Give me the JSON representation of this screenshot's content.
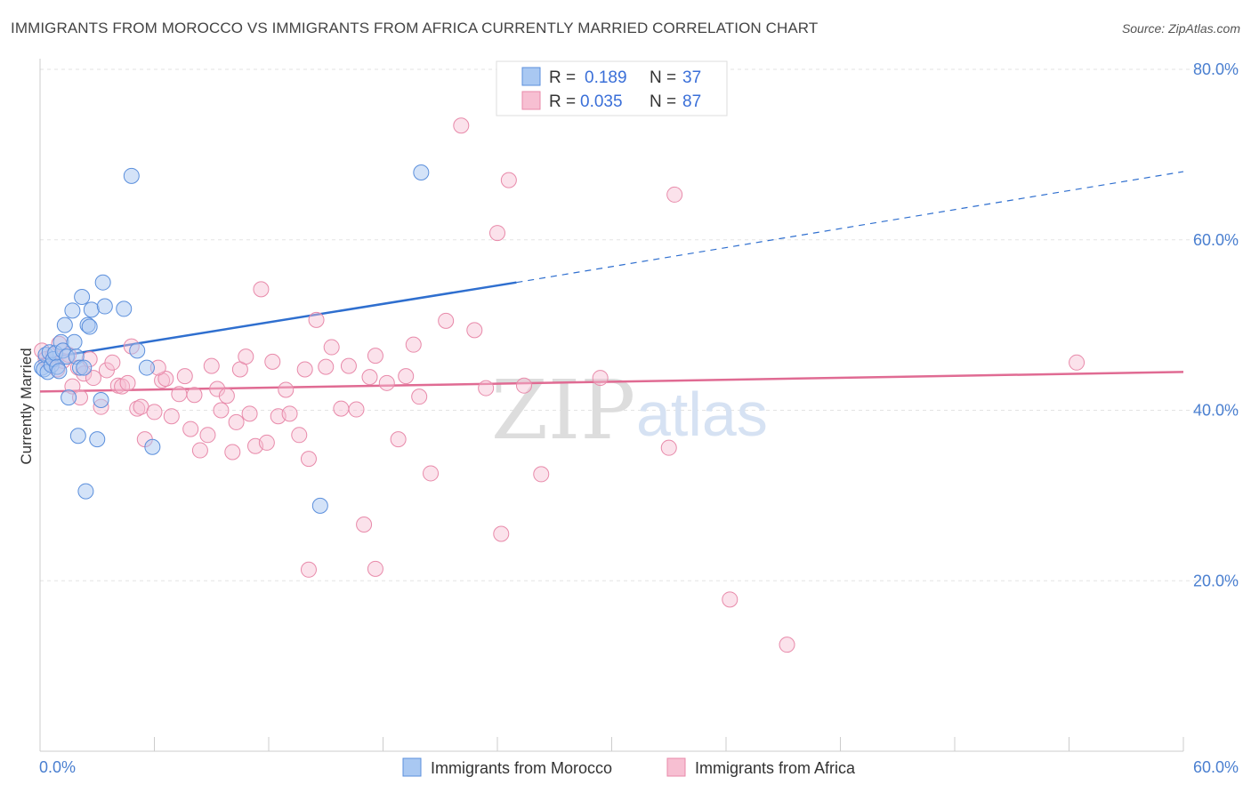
{
  "header": {
    "title": "IMMIGRANTS FROM MOROCCO VS IMMIGRANTS FROM AFRICA CURRENTLY MARRIED CORRELATION CHART",
    "source": "Source: ZipAtlas.com"
  },
  "watermark": {
    "zip": "ZIP",
    "atlas": "atlas"
  },
  "colors": {
    "morocco_fill": "#a9c8f2",
    "morocco_stroke": "#5b8fdc",
    "morocco_line": "#2f6fcf",
    "africa_fill": "#f7bfd2",
    "africa_stroke": "#e88aaa",
    "africa_line": "#e06b93",
    "tick_text": "#4a7fd0"
  },
  "legend": {
    "rows": [
      {
        "r_label": "R =",
        "r_value": "0.189",
        "n_label": "N =",
        "n_value": "37"
      },
      {
        "r_label": "R =",
        "r_value": "0.035",
        "n_label": "N =",
        "n_value": "87"
      }
    ]
  },
  "chart_data": {
    "type": "scatter",
    "title": "IMMIGRANTS FROM MOROCCO VS IMMIGRANTS FROM AFRICA CURRENTLY MARRIED CORRELATION CHART",
    "xlabel": "",
    "ylabel": "Currently Married",
    "xlim": [
      0,
      60
    ],
    "ylim": [
      0,
      80
    ],
    "x_tick_labels": [
      "0.0%",
      "60.0%"
    ],
    "y_ticks": [
      20,
      40,
      60,
      80
    ],
    "y_tick_labels": [
      "20.0%",
      "40.0%",
      "60.0%",
      "80.0%"
    ],
    "grid": true,
    "legend_position": "top-center",
    "series": [
      {
        "name": "Immigrants from Morocco",
        "r": 0.189,
        "n": 37,
        "trend": {
          "x_start": 0,
          "y_start": 46.0,
          "x_solid_end": 25,
          "y_solid_end": 55.0,
          "x_dash_end": 60,
          "y_dash_end": 68.0
        },
        "points": [
          [
            0.1,
            45.0
          ],
          [
            0.2,
            44.8
          ],
          [
            0.3,
            46.5
          ],
          [
            0.4,
            44.5
          ],
          [
            0.5,
            46.8
          ],
          [
            0.6,
            45.3
          ],
          [
            0.7,
            46.0
          ],
          [
            0.8,
            46.7
          ],
          [
            0.9,
            45.1
          ],
          [
            1.0,
            44.6
          ],
          [
            1.1,
            48.0
          ],
          [
            1.2,
            47.0
          ],
          [
            1.3,
            50.0
          ],
          [
            1.4,
            46.3
          ],
          [
            1.5,
            41.5
          ],
          [
            1.7,
            51.7
          ],
          [
            1.8,
            48.0
          ],
          [
            1.9,
            46.3
          ],
          [
            2.0,
            37.0
          ],
          [
            2.1,
            45.0
          ],
          [
            2.2,
            53.3
          ],
          [
            2.3,
            45.0
          ],
          [
            2.4,
            30.5
          ],
          [
            2.5,
            50.0
          ],
          [
            2.6,
            49.8
          ],
          [
            2.7,
            51.8
          ],
          [
            3.0,
            36.6
          ],
          [
            3.2,
            41.2
          ],
          [
            3.3,
            55.0
          ],
          [
            3.4,
            52.2
          ],
          [
            4.4,
            51.9
          ],
          [
            4.8,
            67.5
          ],
          [
            5.1,
            47.0
          ],
          [
            5.6,
            45.0
          ],
          [
            5.9,
            35.7
          ],
          [
            14.7,
            28.8
          ],
          [
            20.0,
            67.9
          ]
        ]
      },
      {
        "name": "Immigrants from Africa",
        "r": 0.035,
        "n": 87,
        "trend": {
          "x_start": 0,
          "y_start": 42.2,
          "x_end": 60,
          "y_end": 44.5
        },
        "points": [
          [
            0.1,
            47.0
          ],
          [
            0.3,
            46.0
          ],
          [
            0.5,
            45.5
          ],
          [
            0.7,
            46.5
          ],
          [
            0.9,
            44.8
          ],
          [
            1.0,
            47.8
          ],
          [
            1.2,
            45.8
          ],
          [
            1.5,
            46.5
          ],
          [
            1.7,
            42.8
          ],
          [
            2.0,
            45.0
          ],
          [
            2.1,
            41.5
          ],
          [
            2.3,
            44.3
          ],
          [
            2.6,
            46.0
          ],
          [
            2.8,
            43.8
          ],
          [
            3.2,
            40.4
          ],
          [
            3.5,
            44.7
          ],
          [
            3.8,
            45.6
          ],
          [
            4.1,
            42.9
          ],
          [
            4.3,
            42.8
          ],
          [
            4.6,
            43.2
          ],
          [
            5.1,
            40.2
          ],
          [
            5.3,
            40.4
          ],
          [
            5.5,
            36.6
          ],
          [
            6.0,
            39.8
          ],
          [
            6.4,
            43.5
          ],
          [
            6.6,
            43.7
          ],
          [
            6.9,
            39.3
          ],
          [
            7.3,
            41.9
          ],
          [
            7.6,
            44.0
          ],
          [
            7.9,
            37.8
          ],
          [
            8.1,
            41.8
          ],
          [
            8.4,
            35.3
          ],
          [
            8.8,
            37.1
          ],
          [
            9.0,
            45.2
          ],
          [
            9.3,
            42.5
          ],
          [
            9.5,
            40.0
          ],
          [
            9.8,
            41.7
          ],
          [
            10.1,
            35.1
          ],
          [
            10.3,
            38.6
          ],
          [
            10.5,
            44.8
          ],
          [
            10.8,
            46.3
          ],
          [
            11.0,
            39.6
          ],
          [
            11.3,
            35.8
          ],
          [
            11.6,
            54.2
          ],
          [
            11.9,
            36.2
          ],
          [
            12.2,
            45.7
          ],
          [
            12.5,
            39.3
          ],
          [
            12.9,
            42.4
          ],
          [
            13.1,
            39.6
          ],
          [
            13.6,
            37.1
          ],
          [
            13.9,
            44.8
          ],
          [
            14.1,
            34.3
          ],
          [
            14.5,
            50.6
          ],
          [
            15.0,
            45.1
          ],
          [
            15.3,
            47.4
          ],
          [
            15.8,
            40.2
          ],
          [
            16.2,
            45.2
          ],
          [
            16.6,
            40.1
          ],
          [
            17.0,
            26.6
          ],
          [
            17.3,
            43.9
          ],
          [
            17.6,
            46.4
          ],
          [
            18.2,
            43.2
          ],
          [
            18.8,
            36.6
          ],
          [
            19.2,
            44.0
          ],
          [
            19.6,
            47.7
          ],
          [
            19.9,
            41.6
          ],
          [
            20.5,
            32.6
          ],
          [
            21.3,
            50.5
          ],
          [
            22.1,
            73.4
          ],
          [
            22.8,
            49.4
          ],
          [
            23.4,
            42.6
          ],
          [
            24.0,
            60.8
          ],
          [
            24.2,
            25.5
          ],
          [
            24.6,
            67.0
          ],
          [
            25.4,
            42.9
          ],
          [
            26.3,
            32.5
          ],
          [
            29.4,
            43.8
          ],
          [
            33.0,
            35.6
          ],
          [
            33.3,
            65.3
          ],
          [
            35.4,
            79.0
          ],
          [
            36.2,
            17.8
          ],
          [
            39.2,
            12.5
          ],
          [
            54.4,
            45.6
          ],
          [
            14.1,
            21.3
          ],
          [
            17.6,
            21.4
          ],
          [
            4.8,
            47.5
          ],
          [
            6.2,
            45.0
          ]
        ]
      }
    ]
  }
}
